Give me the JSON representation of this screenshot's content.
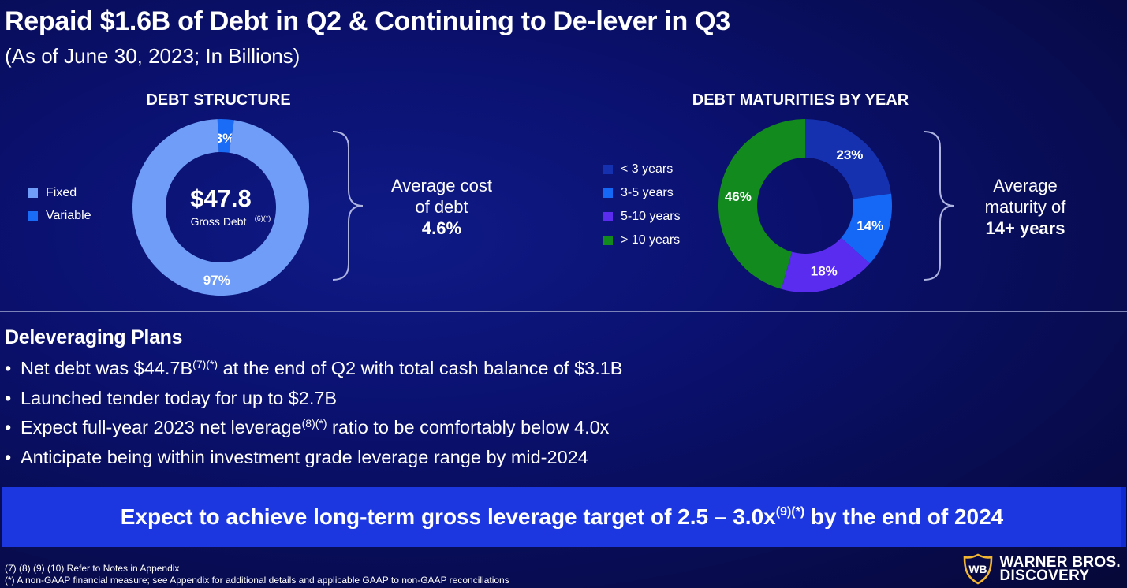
{
  "header": {
    "title": "Repaid $1.6B of Debt in Q2 & Continuing to De-lever in Q3",
    "subtitle": "(As of June 30, 2023; In Billions)"
  },
  "chart_data": [
    {
      "type": "pie",
      "title": "DEBT STRUCTURE",
      "labels": [
        "Fixed",
        "Variable"
      ],
      "values": [
        97,
        3
      ],
      "value_labels": [
        "97%",
        "3%"
      ],
      "colors": [
        "#6f9df7",
        "#1a6bf5"
      ],
      "legend": "left",
      "center": {
        "value": "$47.8",
        "label": "Gross Debt",
        "note": "(6)(*)"
      }
    },
    {
      "type": "pie",
      "title": "DEBT MATURITIES BY YEAR",
      "labels": [
        "< 3 years",
        "3-5 years",
        "5-10 years",
        "> 10 years"
      ],
      "values": [
        23,
        14,
        18,
        46
      ],
      "value_labels": [
        "23%",
        "14%",
        "18%",
        "46%"
      ],
      "colors": [
        "#1531b0",
        "#1568f5",
        "#5a2cf0",
        "#128a1e"
      ],
      "legend": "left"
    }
  ],
  "callouts": {
    "cost": {
      "line1": "Average cost",
      "line2": "of debt",
      "value": "4.6%"
    },
    "maturity": {
      "line1": "Average",
      "line2": "maturity of",
      "value": "14+ years"
    }
  },
  "plans": {
    "title": "Deleveraging Plans",
    "bullets": [
      {
        "pre": "Net debt was $44.7B",
        "sup": "(7)(*)",
        "post": " at the end of Q2 with total cash balance of $3.1B"
      },
      {
        "pre": "Launched tender today for up to $2.7B",
        "sup": "",
        "post": ""
      },
      {
        "pre": "Expect full-year 2023 net leverage",
        "sup": "(8)(*)",
        "post": " ratio to be comfortably below 4.0x"
      },
      {
        "pre": "Anticipate being within investment grade leverage range by mid-2024",
        "sup": "",
        "post": ""
      }
    ]
  },
  "banner": {
    "pre": "Expect to achieve long-term gross leverage target of 2.5 – 3.0x",
    "sup": "(9)(*)",
    "post": " by the end of 2024"
  },
  "footnotes": [
    "(7) (8) (9) (10) Refer to Notes in Appendix",
    "(*) A non-GAAP financial measure; see Appendix for additional details and applicable GAAP to non-GAAP reconciliations"
  ],
  "logo": {
    "line1": "WARNER BROS.",
    "line2": "DISCOVERY",
    "colors": {
      "gold": "#f2b632"
    }
  }
}
